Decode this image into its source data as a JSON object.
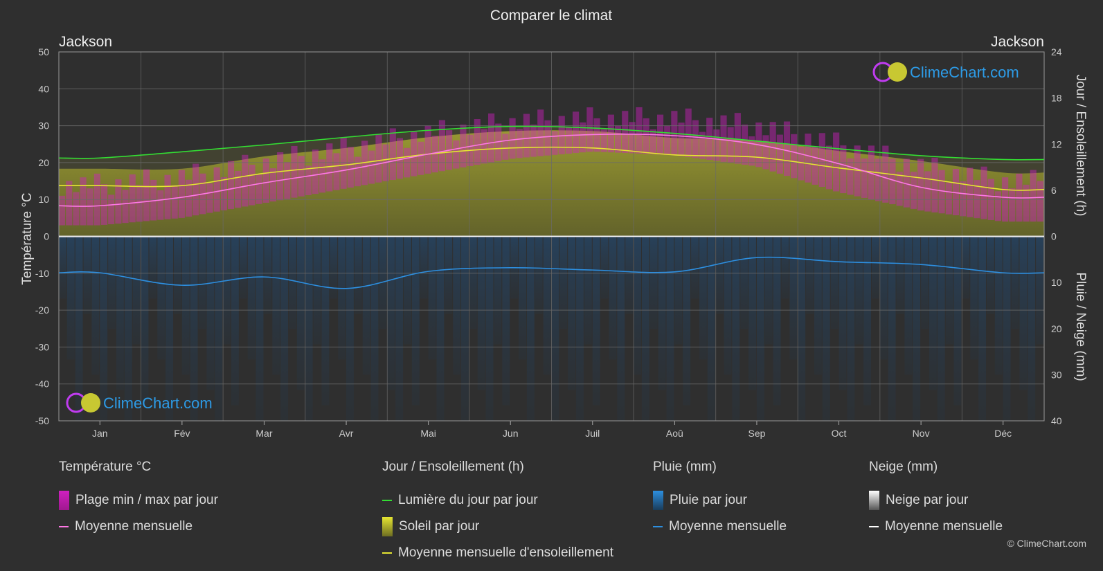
{
  "title": "Comparer le climat",
  "location_left": "Jackson",
  "location_right": "Jackson",
  "watermark": "ClimeChart.com",
  "copyright": "© ClimeChart.com",
  "colors": {
    "background": "#2f2f2f",
    "temp_range": "#d020c0",
    "temp_mean": "#ff78e6",
    "daylight": "#33dd33",
    "sunshine_fill": "#a8a832",
    "sunshine_mean": "#e6e632",
    "rain_fill": "#1e5a96",
    "rain_mean": "#2d8fe0",
    "snow_mean": "#ffffff"
  },
  "chart_data": {
    "type": "area",
    "title": "Comparer le climat",
    "categories": [
      "Jan",
      "Fév",
      "Mar",
      "Avr",
      "Mai",
      "Jun",
      "Juil",
      "Aoû",
      "Sep",
      "Oct",
      "Nov",
      "Déc"
    ],
    "y_left": {
      "label": "Température °C",
      "range": [
        -50,
        50
      ],
      "ticks": [
        50,
        40,
        30,
        20,
        10,
        0,
        -10,
        -20,
        -30,
        -40,
        -50
      ]
    },
    "y_right_top": {
      "label": "Jour / Ensoleillement (h)",
      "range": [
        0,
        24
      ],
      "ticks": [
        24,
        18,
        12,
        6,
        0
      ]
    },
    "y_right_bottom": {
      "label": "Pluie / Neige (mm)",
      "range": [
        0,
        40
      ],
      "ticks": [
        0,
        10,
        20,
        30,
        40
      ]
    },
    "series": [
      {
        "name": "Moyenne mensuelle",
        "group": "Température °C",
        "unit": "°C",
        "values": [
          8.3,
          10.6,
          14.5,
          18.0,
          22.3,
          26.1,
          27.6,
          27.3,
          24.9,
          19.7,
          13.3,
          10.6
        ]
      },
      {
        "name": "Lumière du jour par jour",
        "group": "Jour / Ensoleillement (h)",
        "unit": "h",
        "values": [
          10.2,
          11.0,
          11.9,
          12.9,
          13.8,
          14.3,
          14.1,
          13.4,
          12.4,
          11.4,
          10.5,
          10.0
        ]
      },
      {
        "name": "Moyenne mensuelle d'ensoleillement",
        "group": "Jour / Ensoleillement (h)",
        "unit": "h",
        "values": [
          6.6,
          6.6,
          8.2,
          9.3,
          10.7,
          11.5,
          11.5,
          10.6,
          10.3,
          8.9,
          7.6,
          6.1
        ]
      },
      {
        "name": "Moyenne mensuelle",
        "group": "Pluie (mm)",
        "unit": "mm",
        "values": [
          7.9,
          10.6,
          8.8,
          11.3,
          7.6,
          6.8,
          7.3,
          7.7,
          4.6,
          5.5,
          6.1,
          7.9
        ]
      },
      {
        "name": "Moyenne mensuelle",
        "group": "Neige (mm)",
        "unit": "mm",
        "values": [
          0.1,
          0.1,
          0,
          0,
          0,
          0,
          0,
          0,
          0,
          0,
          0,
          0.1
        ]
      }
    ],
    "temp_range_daily": {
      "min": [
        3,
        5,
        9,
        13,
        17,
        21,
        23,
        22,
        19,
        12,
        7,
        4
      ],
      "max": [
        14,
        16,
        20,
        24,
        28,
        31,
        32,
        32,
        30,
        25,
        19,
        15
      ]
    },
    "grid": true
  },
  "legend": {
    "groups": [
      {
        "title": "Température °C",
        "items": [
          {
            "label": "Plage min / max par jour",
            "swatch": "box",
            "color": "#d020c0"
          },
          {
            "label": "Moyenne mensuelle",
            "swatch": "line",
            "color": "#ff78e6"
          }
        ]
      },
      {
        "title": "Jour / Ensoleillement (h)",
        "items": [
          {
            "label": "Lumière du jour par jour",
            "swatch": "line",
            "color": "#33dd33"
          },
          {
            "label": "Soleil par jour",
            "swatch": "box",
            "color": "#c8c832"
          },
          {
            "label": "Moyenne mensuelle d'ensoleillement",
            "swatch": "line",
            "color": "#e6e632"
          }
        ]
      },
      {
        "title": "Pluie (mm)",
        "items": [
          {
            "label": "Pluie par jour",
            "swatch": "box",
            "color": "#2d8fe0"
          },
          {
            "label": "Moyenne mensuelle",
            "swatch": "line",
            "color": "#2d8fe0"
          }
        ]
      },
      {
        "title": "Neige (mm)",
        "items": [
          {
            "label": "Neige par jour",
            "swatch": "box",
            "color": "#ffffff"
          },
          {
            "label": "Moyenne mensuelle",
            "swatch": "line",
            "color": "#ffffff"
          }
        ]
      }
    ]
  }
}
